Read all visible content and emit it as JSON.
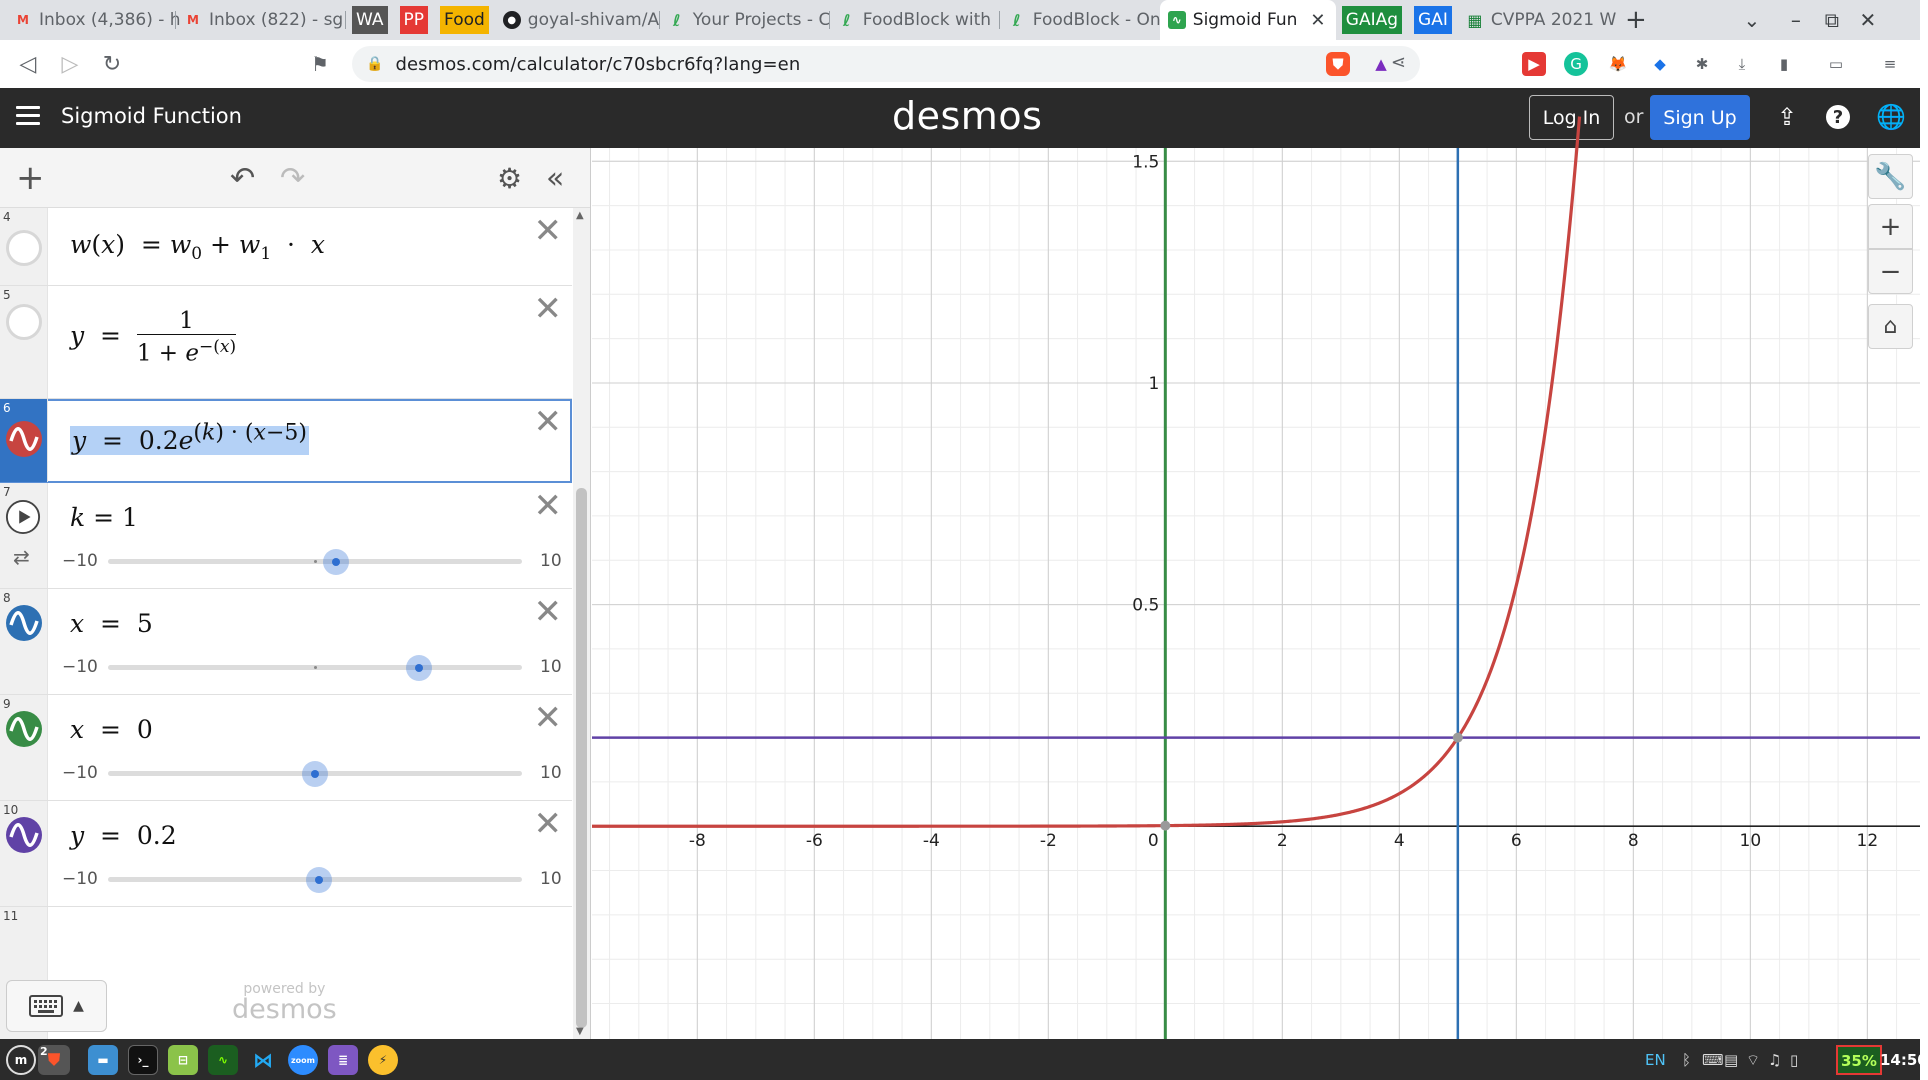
{
  "browser": {
    "tabs": [
      {
        "title": "Inbox (4,386) - h",
        "icon": "gmail-icon",
        "color": "#ea4335",
        "letter": "M"
      },
      {
        "title": "Inbox (822) - sg",
        "icon": "gmail-icon",
        "color": "#ea4335",
        "letter": "M"
      },
      {
        "title": "WA",
        "icon": "pill",
        "color": "#555555"
      },
      {
        "title": "PP",
        "icon": "pill",
        "color": "#e53935"
      },
      {
        "title": "Food",
        "icon": "pill",
        "color": "#f4b400"
      },
      {
        "title": "goyal-shivam/A",
        "icon": "github-icon",
        "color": "#202124",
        "letter": "●"
      },
      {
        "title": "Your Projects - C",
        "icon": "leaf-icon",
        "color": "#34a853",
        "letter": "ℓ"
      },
      {
        "title": "FoodBlock with",
        "icon": "leaf-icon",
        "color": "#34a853",
        "letter": "ℓ"
      },
      {
        "title": "FoodBlock - Onl",
        "icon": "leaf-icon",
        "color": "#34a853",
        "letter": "ℓ"
      },
      {
        "title": "Sigmoid Fun",
        "icon": "desmos-icon",
        "color": "#2ea44f",
        "letter": "∿",
        "active": true
      },
      {
        "title": "GAIAg",
        "icon": "pill",
        "color": "#1e8e3e"
      },
      {
        "title": "GAI",
        "icon": "pill",
        "color": "#1a73e8"
      },
      {
        "title": "CVPPA 2021 W",
        "icon": "sheet-icon",
        "color": "#188038",
        "letter": "▦"
      }
    ],
    "new_tab": "+",
    "url": "desmos.com/calculator/c70sbcr6fq?lang=en"
  },
  "desmos": {
    "title": "Sigmoid Function",
    "logo": "desmos",
    "login": "Log In",
    "or": "or",
    "signup": "Sign Up",
    "powered_by": "powered by",
    "powered_logo": "desmos"
  },
  "expressions": [
    {
      "num": "4",
      "type": "formula",
      "color": "none"
    },
    {
      "num": "5",
      "type": "formula",
      "color": "none"
    },
    {
      "num": "6",
      "type": "formula",
      "color": "#c74440"
    },
    {
      "num": "7",
      "type": "slider",
      "var": "k",
      "value": "1",
      "min": "−10",
      "max": "10",
      "position": 0.55,
      "color": "play"
    },
    {
      "num": "8",
      "type": "slider",
      "var": "x",
      "value": "5",
      "min": "−10",
      "max": "10",
      "position": 0.75,
      "color": "#2d70b3"
    },
    {
      "num": "9",
      "type": "slider",
      "var": "x",
      "value": "0",
      "min": "−10",
      "max": "10",
      "position": 0.5,
      "color": "#388c46"
    },
    {
      "num": "10",
      "type": "slider",
      "var": "y",
      "value": "0.2",
      "min": "−10",
      "max": "10",
      "position": 0.51,
      "color": "#6042a6"
    },
    {
      "num": "11",
      "type": "empty"
    }
  ],
  "graph": {
    "x_ticks": [
      "-8",
      "-6",
      "-4",
      "-2",
      "0",
      "2",
      "4",
      "6",
      "8",
      "10",
      "12"
    ],
    "y_ticks": [
      "0.5",
      "1",
      "1.5"
    ],
    "xlim": [
      -9.8,
      12.9
    ],
    "ylim": [
      -0.48,
      1.53
    ],
    "curve_color": "#c74440",
    "vline_x5_color": "#2d70b3",
    "vline_x0_color": "#388c46",
    "hline_color": "#6042a6"
  },
  "taskbar": {
    "lang": "EN",
    "battery": "35%",
    "time": "14:50",
    "workspace": "2"
  }
}
